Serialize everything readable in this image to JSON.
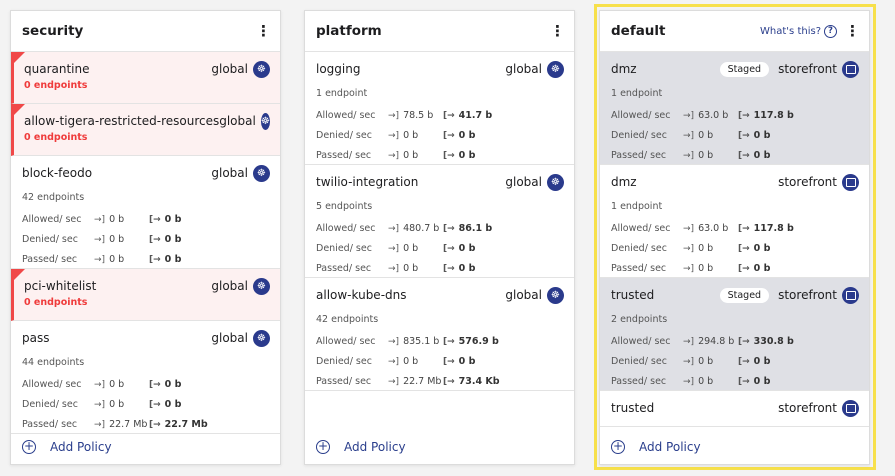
{
  "whats_this": "What's this?",
  "add_policy": "Add Policy",
  "stat_labels": {
    "allowed": "Allowed/ sec",
    "denied": "Denied/ sec",
    "passed": "Passed/ sec"
  },
  "colors": {
    "accent": "#2a3e8c",
    "error": "#f04848",
    "highlight": "#f7e04b",
    "staged_bg": "#dfe0e5"
  },
  "tiers": [
    {
      "title": "security",
      "highlighted": false,
      "policies": [
        {
          "name": "quarantine",
          "namespace": "global",
          "icon": "kubernetes-icon",
          "endpoints": "0 endpoints",
          "error": true
        },
        {
          "name": "allow-tigera-restricted-resources",
          "namespace": "global",
          "icon": "kubernetes-icon",
          "endpoints": "0 endpoints",
          "error": true
        },
        {
          "name": "block-feodo",
          "namespace": "global",
          "icon": "kubernetes-icon",
          "endpoints": "42 endpoints",
          "stats": {
            "allowed": [
              "0 b",
              "0 b"
            ],
            "denied": [
              "0 b",
              "0 b"
            ],
            "passed": [
              "0 b",
              "0 b"
            ]
          }
        },
        {
          "name": "pci-whitelist",
          "namespace": "global",
          "icon": "kubernetes-icon",
          "endpoints": "0 endpoints",
          "error": true
        },
        {
          "name": "pass",
          "namespace": "global",
          "icon": "kubernetes-icon",
          "endpoints": "44 endpoints",
          "stats": {
            "allowed": [
              "0 b",
              "0 b"
            ],
            "denied": [
              "0 b",
              "0 b"
            ],
            "passed": [
              "22.7 Mb",
              "22.7 Mb"
            ]
          }
        }
      ]
    },
    {
      "title": "platform",
      "highlighted": false,
      "policies": [
        {
          "name": "logging",
          "namespace": "global",
          "icon": "kubernetes-icon",
          "endpoints": "1 endpoint",
          "stats": {
            "allowed": [
              "78.5 b",
              "41.7 b"
            ],
            "denied": [
              "0 b",
              "0 b"
            ],
            "passed": [
              "0 b",
              "0 b"
            ]
          }
        },
        {
          "name": "twilio-integration",
          "namespace": "global",
          "icon": "kubernetes-icon",
          "endpoints": "5 endpoints",
          "stats": {
            "allowed": [
              "480.7 b",
              "86.1 b"
            ],
            "denied": [
              "0 b",
              "0 b"
            ],
            "passed": [
              "0 b",
              "0 b"
            ]
          }
        },
        {
          "name": "allow-kube-dns",
          "namespace": "global",
          "icon": "kubernetes-icon",
          "endpoints": "42 endpoints",
          "stats": {
            "allowed": [
              "835.1 b",
              "576.9 b"
            ],
            "denied": [
              "0 b",
              "0 b"
            ],
            "passed": [
              "22.7 Mb",
              "73.4 Kb"
            ]
          }
        }
      ]
    },
    {
      "title": "default",
      "highlighted": true,
      "policies": [
        {
          "name": "dmz",
          "namespace": "storefront",
          "icon": "namespace-icon",
          "badge": "Staged",
          "endpoints": "1 endpoint",
          "stats": {
            "allowed": [
              "63.0 b",
              "117.8 b"
            ],
            "denied": [
              "0 b",
              "0 b"
            ],
            "passed": [
              "0 b",
              "0 b"
            ]
          }
        },
        {
          "name": "dmz",
          "namespace": "storefront",
          "icon": "namespace-icon",
          "endpoints": "1 endpoint",
          "stats": {
            "allowed": [
              "63.0 b",
              "117.8 b"
            ],
            "denied": [
              "0 b",
              "0 b"
            ],
            "passed": [
              "0 b",
              "0 b"
            ]
          }
        },
        {
          "name": "trusted",
          "namespace": "storefront",
          "icon": "namespace-icon",
          "badge": "Staged",
          "endpoints": "2 endpoints",
          "stats": {
            "allowed": [
              "294.8 b",
              "330.8 b"
            ],
            "denied": [
              "0 b",
              "0 b"
            ],
            "passed": [
              "0 b",
              "0 b"
            ]
          }
        },
        {
          "name": "trusted",
          "namespace": "storefront",
          "icon": "namespace-icon"
        }
      ]
    }
  ]
}
